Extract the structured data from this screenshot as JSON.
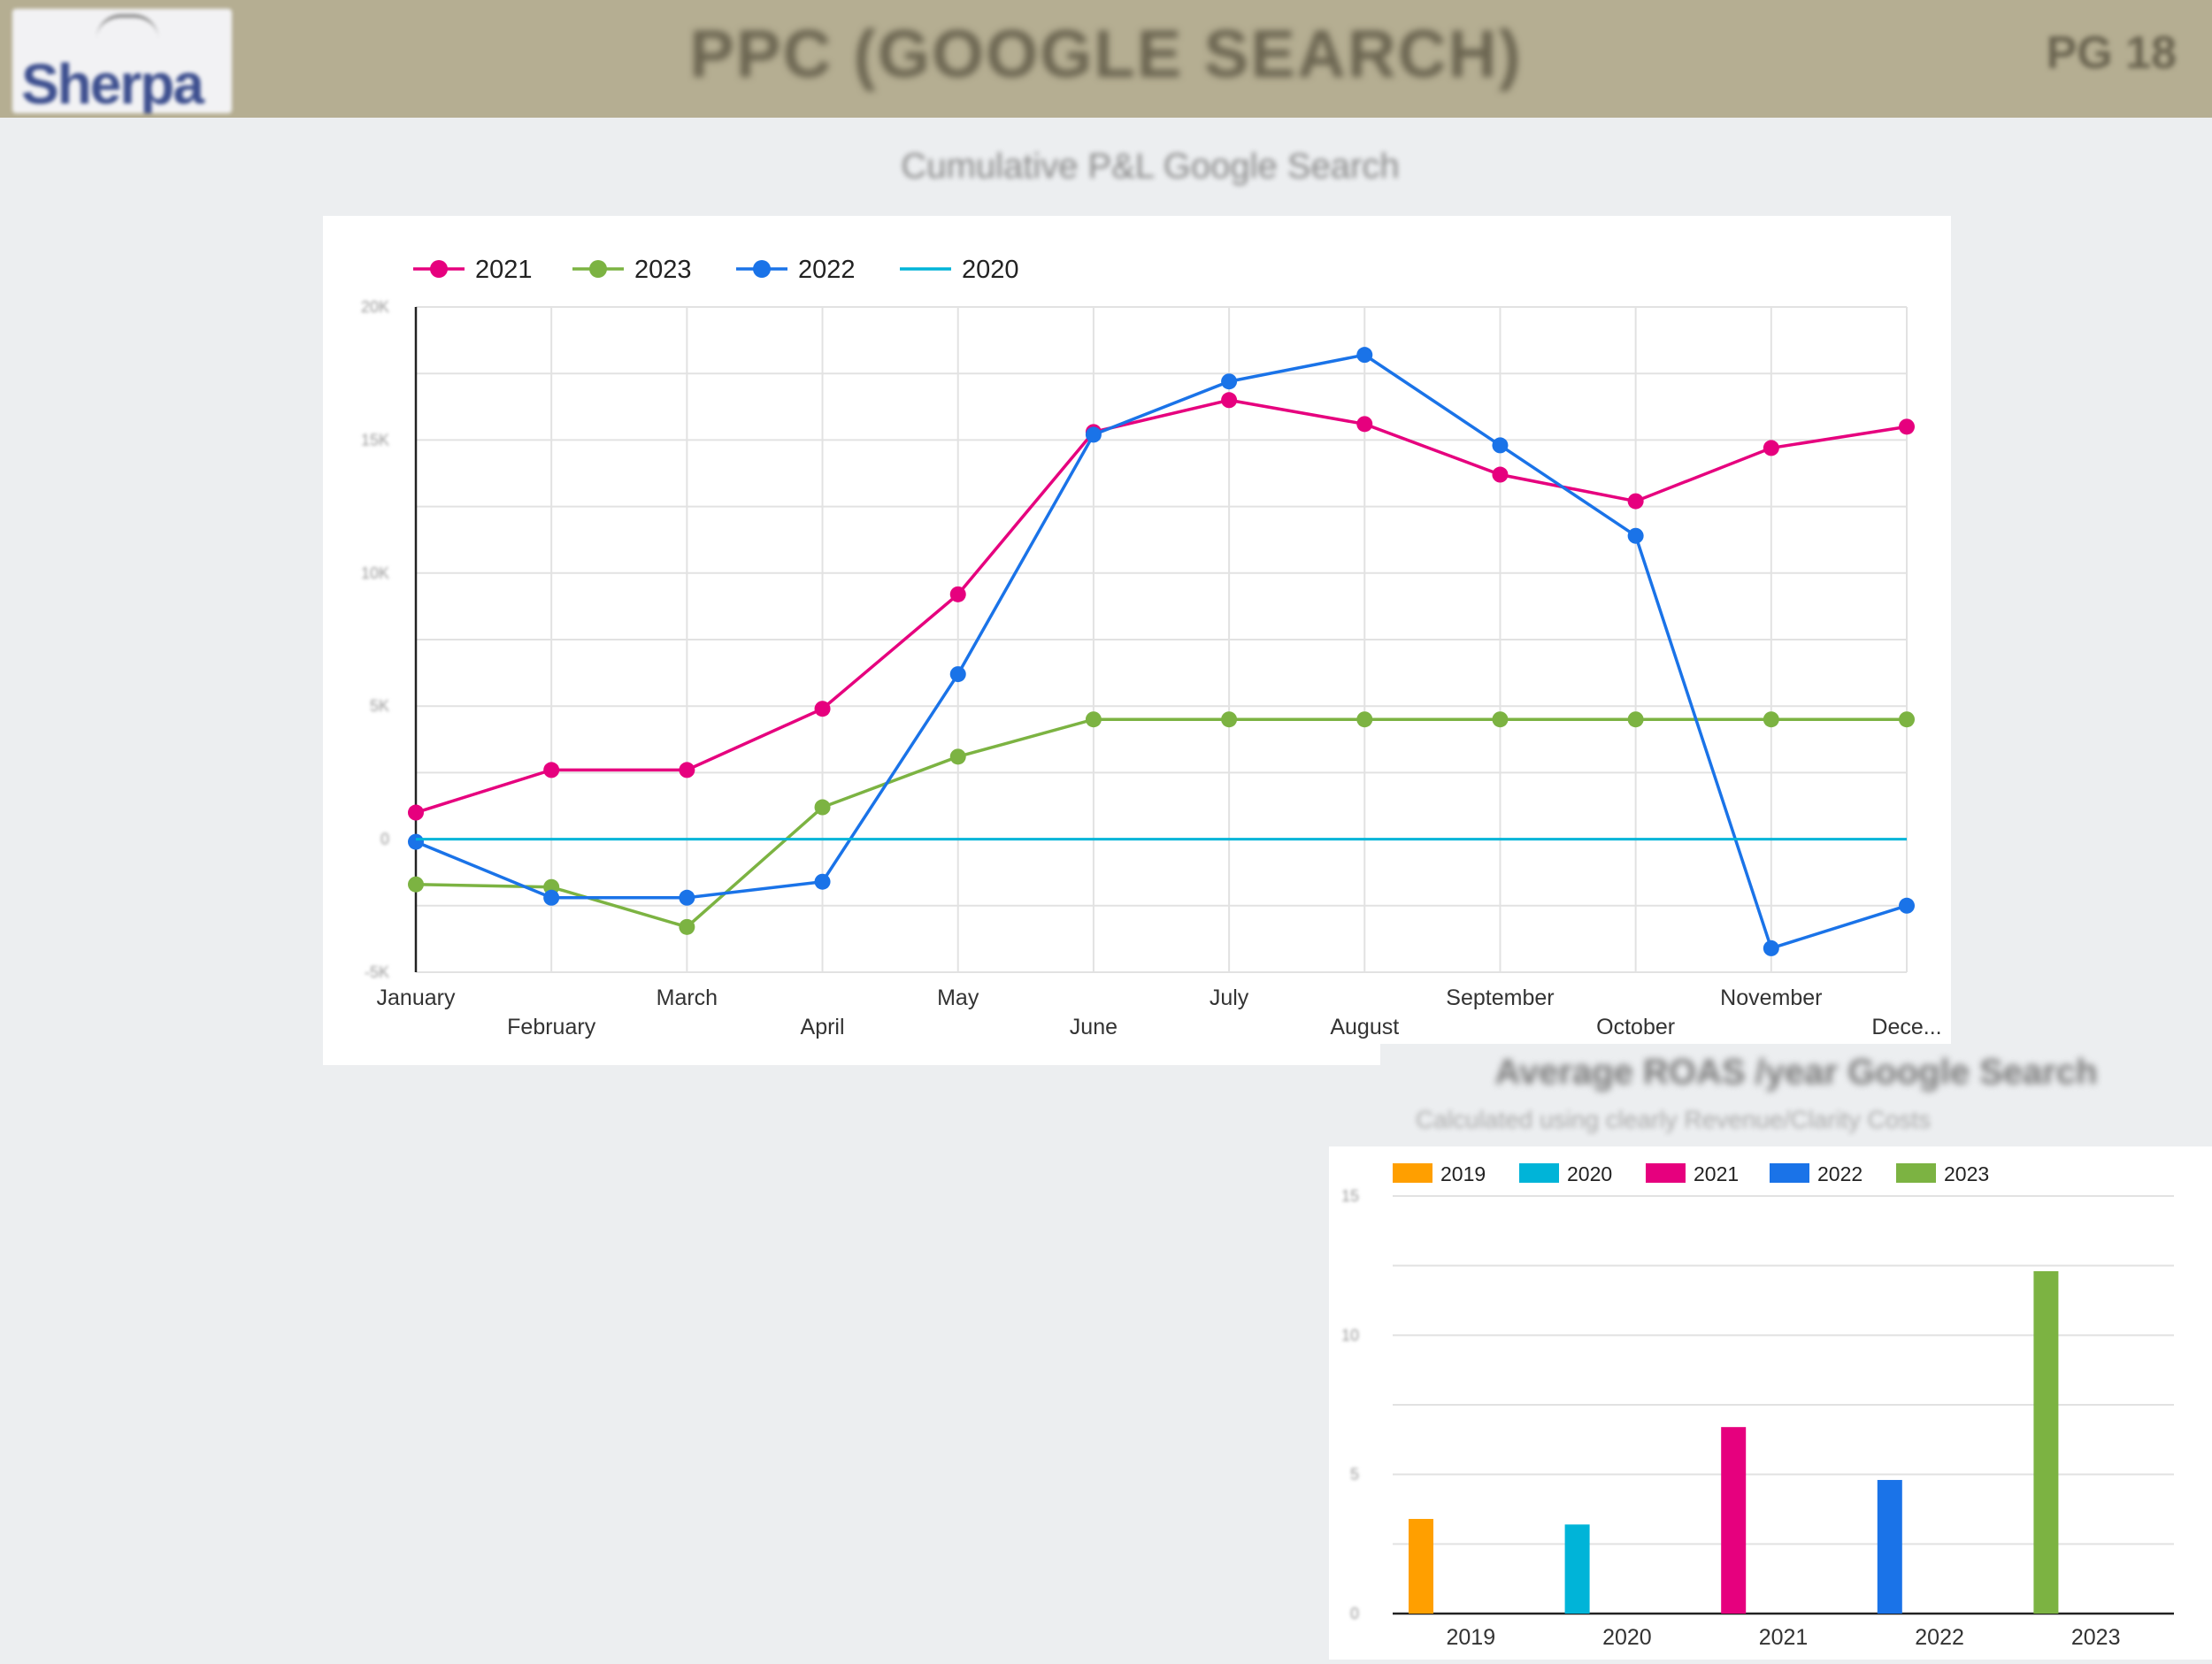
{
  "header": {
    "logo_text": "Sherpa",
    "title": "PPC (GOOGLE SEARCH)",
    "page": "PG 18",
    "accent": "#b5ae92"
  },
  "line_section": {
    "title": "Cumulative P&L Google Search"
  },
  "bar_section": {
    "title": "Average ROAS /year Google Search",
    "subtitle": "Calculated using clearly Revenue/Clarity Costs"
  },
  "chart_data": [
    {
      "type": "line",
      "title": "Cumulative P&L Google Search",
      "x": [
        "January",
        "February",
        "March",
        "April",
        "May",
        "June",
        "July",
        "August",
        "September",
        "October",
        "November",
        "Dece..."
      ],
      "y_ticks": [
        "-5K",
        "0",
        "5K",
        "10K",
        "15K",
        "20K"
      ],
      "ylim": [
        -5,
        20
      ],
      "grid": true,
      "legend": "top-left",
      "series": [
        {
          "name": "2021",
          "color": "#e6007e",
          "markers": true,
          "values": [
            1,
            2.6,
            2.6,
            4.9,
            9.2,
            15.3,
            16.5,
            15.6,
            13.7,
            12.7,
            14.7,
            15.5
          ]
        },
        {
          "name": "2023",
          "color": "#7cb342",
          "markers": true,
          "values": [
            -1.7,
            -1.8,
            -3.3,
            1.2,
            3.1,
            4.5,
            4.5,
            4.5,
            4.5,
            4.5,
            4.5,
            4.5
          ]
        },
        {
          "name": "2022",
          "color": "#1a73e8",
          "markers": true,
          "values": [
            -0.1,
            -2.2,
            -2.2,
            -1.6,
            6.2,
            15.2,
            17.2,
            18.2,
            14.8,
            11.4,
            -4.1,
            -2.5
          ]
        },
        {
          "name": "2020",
          "color": "#00b4d8",
          "markers": false,
          "values": [
            0,
            0,
            0,
            0,
            0,
            0,
            0,
            0,
            0,
            0,
            0,
            0
          ]
        }
      ]
    },
    {
      "type": "bar",
      "title": "Average ROAS /year Google Search",
      "categories": [
        "2019",
        "2020",
        "2021",
        "2022",
        "2023"
      ],
      "y_ticks": [
        "0",
        "5",
        "10",
        "15"
      ],
      "ylim": [
        0,
        15
      ],
      "grid": true,
      "legend": "top-left",
      "series": [
        {
          "name": "2019",
          "color": "#ff9f00",
          "values": [
            3.4,
            null,
            null,
            null,
            null
          ]
        },
        {
          "name": "2020",
          "color": "#00b4d8",
          "values": [
            null,
            3.2,
            null,
            null,
            null
          ]
        },
        {
          "name": "2021",
          "color": "#e6007e",
          "values": [
            null,
            null,
            6.7,
            null,
            null
          ]
        },
        {
          "name": "2022",
          "color": "#1a73e8",
          "values": [
            null,
            null,
            null,
            4.8,
            null
          ]
        },
        {
          "name": "2023",
          "color": "#7cb342",
          "values": [
            null,
            null,
            null,
            null,
            12.3
          ]
        }
      ]
    }
  ]
}
